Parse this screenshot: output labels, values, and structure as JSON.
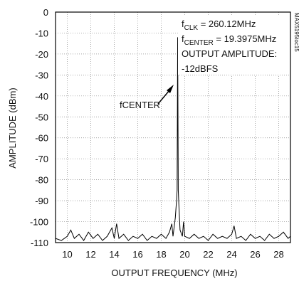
{
  "chart_data": {
    "type": "line",
    "xlabel": "OUTPUT FREQUENCY (MHz)",
    "ylabel": "AMPLITUDE (dBm)",
    "xlim": [
      9,
      29
    ],
    "ylim": [
      -110,
      0
    ],
    "xticks": [
      10,
      12,
      14,
      16,
      18,
      20,
      22,
      24,
      26,
      28
    ],
    "yticks": [
      0,
      -10,
      -20,
      -30,
      -40,
      -50,
      -60,
      -70,
      -80,
      -90,
      -100,
      -110
    ],
    "grid": true,
    "series": [
      {
        "color": "#000000",
        "x": [
          9.0,
          9.5,
          10.0,
          10.3,
          10.6,
          11.0,
          11.4,
          11.8,
          12.2,
          12.6,
          13.0,
          13.4,
          13.8,
          14.0,
          14.2,
          14.4,
          14.8,
          15.2,
          15.6,
          16.0,
          16.4,
          16.8,
          17.2,
          17.6,
          18.0,
          18.4,
          18.7,
          18.9,
          19.0,
          19.2,
          19.3,
          19.35,
          19.3975,
          19.45,
          19.5,
          19.6,
          19.8,
          19.9,
          20.0,
          20.4,
          20.8,
          21.2,
          21.6,
          22.0,
          22.4,
          22.8,
          23.2,
          23.6,
          24.0,
          24.2,
          24.4,
          24.8,
          25.2,
          25.6,
          26.0,
          26.4,
          26.8,
          27.2,
          27.6,
          28.0,
          28.4,
          28.8,
          29.0
        ],
        "values": [
          -108,
          -109,
          -107,
          -104,
          -108,
          -106,
          -109,
          -105,
          -108,
          -106,
          -109,
          -107,
          -103,
          -108,
          -101,
          -108,
          -106,
          -109,
          -107,
          -108,
          -106,
          -109,
          -107,
          -108,
          -106,
          -108,
          -105,
          -101,
          -107,
          -98,
          -90,
          -85,
          -12,
          -85,
          -92,
          -104,
          -107,
          -100,
          -107,
          -108,
          -106,
          -108,
          -107,
          -109,
          -106,
          -108,
          -107,
          -108,
          -106,
          -102,
          -108,
          -107,
          -109,
          -106,
          -108,
          -107,
          -109,
          -106,
          -108,
          -107,
          -105,
          -108,
          -107
        ]
      }
    ],
    "annotation_lines": [
      [
        "f",
        "CLK",
        " = 260.12MHz"
      ],
      [
        "f",
        "CENTER",
        " = 19.3975MHz"
      ],
      [
        "OUTPUT AMPLITUDE:"
      ],
      [
        "-12dBFS"
      ]
    ],
    "arrow_label": [
      "f",
      "CENTER"
    ],
    "figure_id": "MAX5195toc15"
  }
}
